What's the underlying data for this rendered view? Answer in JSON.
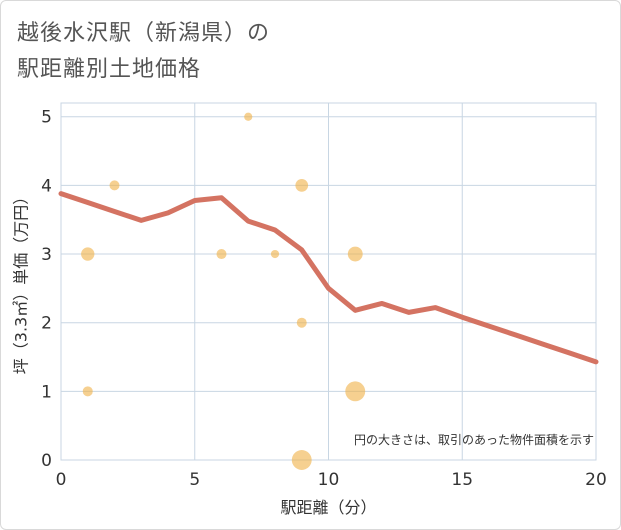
{
  "title_line1": "越後水沢駅（新潟県）の",
  "title_line2": "駅距離別土地価格",
  "chart_data": {
    "type": "scatter+line",
    "title": "越後水沢駅（新潟県）の駅距離別土地価格",
    "xlabel": "駅距離（分）",
    "ylabel": "坪（3.3㎡）単価（万円）",
    "xlim": [
      0,
      20
    ],
    "ylim": [
      0,
      5.2
    ],
    "xticks": [
      0,
      5,
      10,
      15,
      20
    ],
    "yticks": [
      0,
      1,
      2,
      3,
      4,
      5
    ],
    "grid": true,
    "note": "円の大きさは、取引のあった物件面積を示す",
    "scatter": [
      {
        "x": 1,
        "y": 3.0,
        "size": 2
      },
      {
        "x": 1,
        "y": 1.0,
        "size": 1
      },
      {
        "x": 2,
        "y": 4.0,
        "size": 1
      },
      {
        "x": 6,
        "y": 3.0,
        "size": 1
      },
      {
        "x": 7,
        "y": 5.0,
        "size": 0.6
      },
      {
        "x": 8,
        "y": 3.0,
        "size": 0.6
      },
      {
        "x": 9,
        "y": 4.0,
        "size": 1.8
      },
      {
        "x": 9,
        "y": 2.0,
        "size": 1
      },
      {
        "x": 9,
        "y": 0.0,
        "size": 5
      },
      {
        "x": 11,
        "y": 3.0,
        "size": 2.6
      },
      {
        "x": 11,
        "y": 1.0,
        "size": 5
      }
    ],
    "line": {
      "x": [
        0,
        1,
        2,
        3,
        4,
        5,
        6,
        7,
        8,
        9,
        10,
        11,
        12,
        13,
        14,
        15,
        16,
        17,
        18,
        19,
        20
      ],
      "y": [
        3.88,
        3.75,
        3.62,
        3.49,
        3.6,
        3.78,
        3.82,
        3.48,
        3.35,
        3.06,
        2.5,
        2.18,
        2.28,
        2.15,
        2.22,
        2.08,
        1.95,
        1.82,
        1.69,
        1.56,
        1.43
      ]
    },
    "colors": {
      "line": "#d47362",
      "bubble": "#f0b046",
      "grid": "#c8d6e3",
      "plot_border": "#c8d6e3"
    }
  }
}
